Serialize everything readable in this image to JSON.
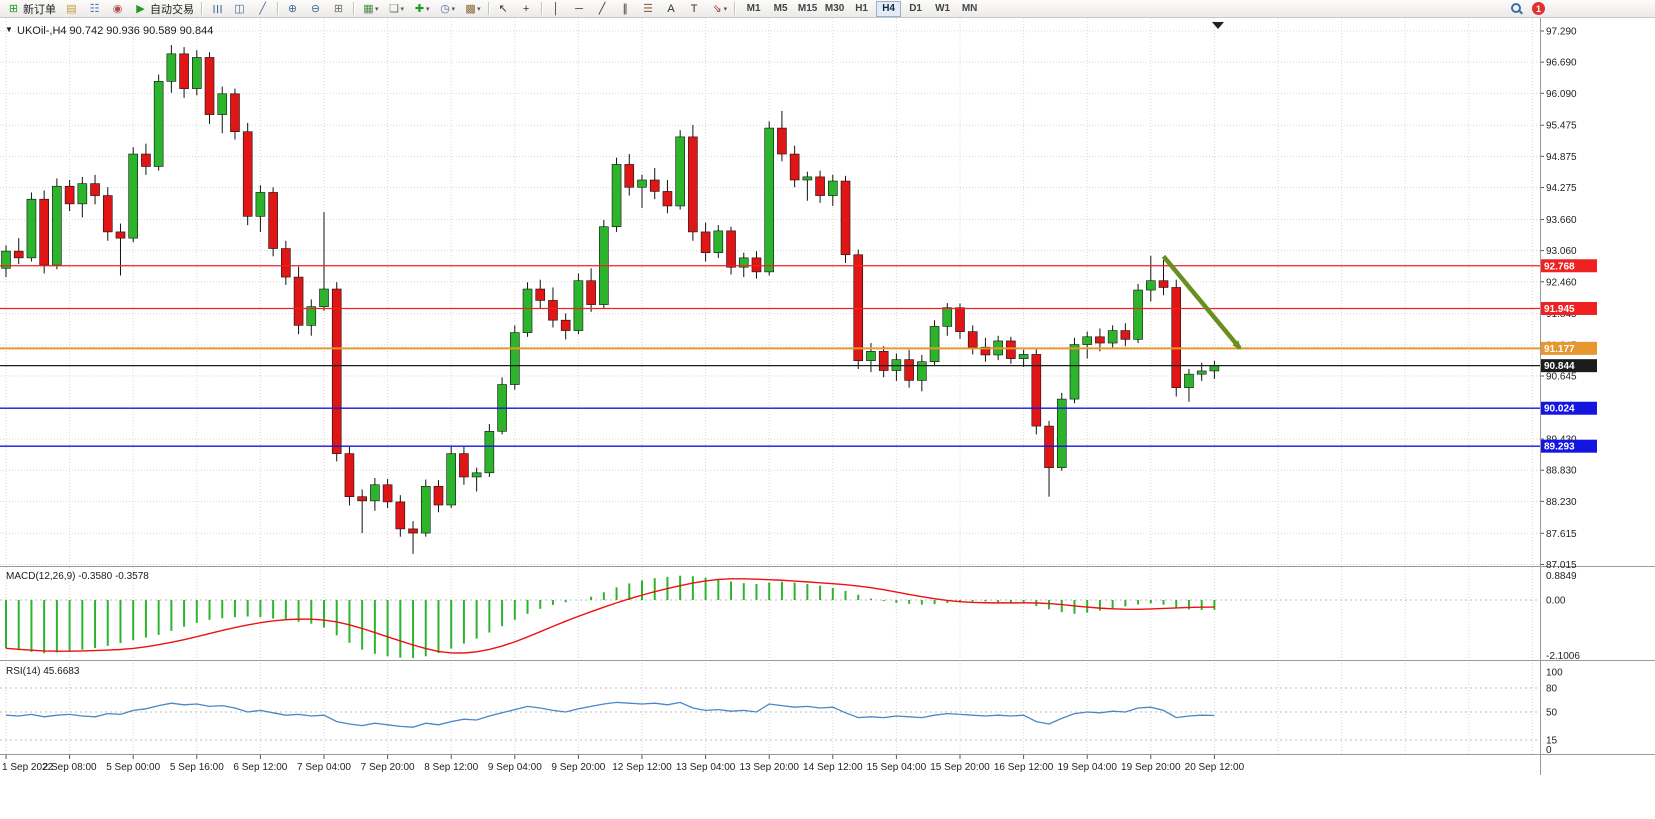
{
  "colors": {
    "bull": "#2db42d",
    "bear": "#e01515",
    "wick": "#111111",
    "grid": "#d7d7d7",
    "macd_hist": "#2db42d",
    "macd_signal": "#ee1111",
    "rsi_line": "#4a86c8",
    "arrow_green": "#698f1f",
    "axis_line": "#9a9a9a"
  },
  "toolbar": {
    "notification_count": "1",
    "timeframes": [
      "M1",
      "M5",
      "M15",
      "M30",
      "H1",
      "H4",
      "D1",
      "W1",
      "MN"
    ],
    "active_timeframe": "H4",
    "items": [
      {
        "t": "btn",
        "name": "new-order-button",
        "icon_name": "new-order-icon",
        "label": "新订单",
        "glyph": "⊞",
        "color": "#1f9d1f"
      },
      {
        "t": "icon",
        "name": "charts-toolbar-icon",
        "glyph": "▤",
        "color": "#c49a3c"
      },
      {
        "t": "icon",
        "name": "market-watch-icon",
        "glyph": "☷",
        "color": "#4a78b4"
      },
      {
        "t": "icon",
        "name": "navigator-icon",
        "glyph": "◉",
        "color": "#b05050"
      },
      {
        "t": "btn",
        "name": "autotrade-button",
        "icon_name": "autotrade-icon",
        "label": "自动交易",
        "glyph": "▶",
        "color": "#1f9d1f"
      },
      {
        "t": "sep"
      },
      {
        "t": "icon",
        "name": "bar-chart-icon",
        "glyph": "☰",
        "color": "#41699c",
        "cls": "rot90"
      },
      {
        "t": "icon",
        "name": "candlestick-chart-icon",
        "glyph": "◫",
        "color": "#41699c"
      },
      {
        "t": "icon",
        "name": "line-chart-icon",
        "glyph": "╱",
        "color": "#41699c"
      },
      {
        "t": "sep"
      },
      {
        "t": "icon",
        "name": "zoom-in-icon",
        "glyph": "⊕",
        "color": "#41699c"
      },
      {
        "t": "icon",
        "name": "zoom-out-icon",
        "glyph": "⊖",
        "color": "#41699c"
      },
      {
        "t": "icon",
        "name": "tile-windows-icon",
        "glyph": "⊞",
        "color": "#707070"
      },
      {
        "t": "sep"
      },
      {
        "t": "icon",
        "name": "new-chart-icon",
        "glyph": "▦",
        "color": "#4a8a4a",
        "caret": true
      },
      {
        "t": "icon",
        "name": "profiles-icon",
        "glyph": "❏",
        "color": "#707070",
        "caret": true
      },
      {
        "t": "icon",
        "name": "indicators-icon",
        "glyph": "✚",
        "color": "#1f9d1f",
        "caret": true
      },
      {
        "t": "icon",
        "name": "periods-icon",
        "glyph": "◷",
        "color": "#41699c",
        "caret": true
      },
      {
        "t": "icon",
        "name": "templates-icon",
        "glyph": "▩",
        "color": "#8a6a3a",
        "caret": true
      },
      {
        "t": "sep"
      },
      {
        "t": "icon",
        "name": "cursor-icon",
        "glyph": "↖",
        "color": "#333333"
      },
      {
        "t": "icon",
        "name": "crosshair-icon",
        "glyph": "+",
        "color": "#333333"
      },
      {
        "t": "sep"
      },
      {
        "t": "icon",
        "name": "vertical-line-icon",
        "glyph": "│",
        "color": "#333333"
      },
      {
        "t": "icon",
        "name": "horizontal-line-icon",
        "glyph": "─",
        "color": "#333333"
      },
      {
        "t": "icon",
        "name": "trendline-icon",
        "glyph": "╱",
        "color": "#333333"
      },
      {
        "t": "icon",
        "name": "channel-icon",
        "glyph": "∥",
        "color": "#333333"
      },
      {
        "t": "icon",
        "name": "fibonacci-icon",
        "glyph": "☰",
        "color": "#8a6a3a"
      },
      {
        "t": "icon",
        "name": "text-icon",
        "glyph": "A",
        "color": "#333333"
      },
      {
        "t": "icon",
        "name": "text-label-icon",
        "glyph": "T",
        "color": "#333333"
      },
      {
        "t": "icon",
        "name": "arrows-tool-icon",
        "glyph": "⇘",
        "color": "#a03030",
        "caret": true
      },
      {
        "t": "sep"
      }
    ]
  },
  "chart": {
    "symbol_label": "UKOil-,H4 90.742 90.936 90.589 90.844",
    "one_click_glyph": "▼",
    "price_axis_labels": [
      "97.290",
      "96.690",
      "96.090",
      "95.475",
      "94.875",
      "94.275",
      "93.660",
      "93.060",
      "92.460",
      "91.845",
      "91.245",
      "90.645",
      "89.430",
      "88.830",
      "88.230",
      "87.615",
      "87.015"
    ],
    "grid_prices": [
      97.29,
      96.69,
      96.09,
      95.475,
      94.875,
      94.275,
      93.66,
      93.06,
      92.46,
      91.845,
      91.245,
      90.645,
      90.03,
      89.43,
      88.83,
      88.23,
      87.615,
      87.015
    ],
    "time_axis_labels": [
      "1 Sep 2022",
      "2 Sep 08:00",
      "5 Sep 00:00",
      "5 Sep 16:00",
      "6 Sep 12:00",
      "7 Sep 04:00",
      "7 Sep 20:00",
      "8 Sep 12:00",
      "9 Sep 04:00",
      "9 Sep 20:00",
      "12 Sep 12:00",
      "13 Sep 04:00",
      "13 Sep 20:00",
      "14 Sep 12:00",
      "15 Sep 04:00",
      "15 Sep 20:00",
      "16 Sep 12:00",
      "19 Sep 04:00",
      "19 Sep 20:00",
      "20 Sep 12:00"
    ],
    "hlines": [
      {
        "price": 92.768,
        "label": "92.768",
        "color": "#ee2222",
        "width": 1.2
      },
      {
        "price": 91.945,
        "label": "91.945",
        "color": "#ee2222",
        "width": 1.2
      },
      {
        "price": 91.177,
        "label": "91.177",
        "color": "#e8962e",
        "width": 2
      },
      {
        "price": 90.844,
        "label": "90.844",
        "color": "#1c1c1c",
        "width": 1.2
      },
      {
        "price": 90.024,
        "label": "90.024",
        "color": "#1515e0",
        "width": 1.4
      },
      {
        "price": 89.293,
        "label": "89.293",
        "color": "#1515e0",
        "width": 1.4
      }
    ],
    "arrow": {
      "from_bar": 91,
      "from_price": 92.95,
      "to_bar": 97,
      "to_price": 91.18
    }
  },
  "macd": {
    "label": "MACD(12,26,9) -0.3580 -0.3578",
    "axis_labels": [
      "0.8849",
      "0.00",
      "-2.1006"
    ]
  },
  "rsi": {
    "label": "RSI(14) 45.6683",
    "axis_labels": [
      "100",
      "80",
      "50",
      "15",
      "0"
    ],
    "levels": [
      80,
      50,
      15
    ]
  },
  "chart_data": {
    "type": "candlestick",
    "symbol": "UKOil-",
    "timeframe": "H4",
    "current_ohlc": {
      "open": 90.742,
      "high": 90.936,
      "low": 90.589,
      "close": 90.844
    },
    "ohlc": [
      [
        92.72,
        93.16,
        92.55,
        93.05
      ],
      [
        93.05,
        93.3,
        92.8,
        92.92
      ],
      [
        92.92,
        94.18,
        92.85,
        94.05
      ],
      [
        94.05,
        94.22,
        92.62,
        92.78
      ],
      [
        92.78,
        94.45,
        92.7,
        94.3
      ],
      [
        94.3,
        94.42,
        93.82,
        93.96
      ],
      [
        93.96,
        94.48,
        93.7,
        94.35
      ],
      [
        94.35,
        94.52,
        93.95,
        94.12
      ],
      [
        94.12,
        94.28,
        93.25,
        93.42
      ],
      [
        93.42,
        93.58,
        92.58,
        93.3
      ],
      [
        93.3,
        95.05,
        93.22,
        94.92
      ],
      [
        94.92,
        95.12,
        94.52,
        94.68
      ],
      [
        94.68,
        96.45,
        94.6,
        96.32
      ],
      [
        96.32,
        97.02,
        96.1,
        96.85
      ],
      [
        96.85,
        96.98,
        96.0,
        96.18
      ],
      [
        96.18,
        96.92,
        96.05,
        96.78
      ],
      [
        96.78,
        96.88,
        95.5,
        95.68
      ],
      [
        95.68,
        96.22,
        95.32,
        96.08
      ],
      [
        96.08,
        96.18,
        95.2,
        95.35
      ],
      [
        95.35,
        95.52,
        93.55,
        93.72
      ],
      [
        93.72,
        94.32,
        93.42,
        94.18
      ],
      [
        94.18,
        94.28,
        92.95,
        93.1
      ],
      [
        93.1,
        93.25,
        92.4,
        92.55
      ],
      [
        92.55,
        92.75,
        91.45,
        91.62
      ],
      [
        91.62,
        92.12,
        91.42,
        91.98
      ],
      [
        91.98,
        93.8,
        91.9,
        92.32
      ],
      [
        92.32,
        92.45,
        89.0,
        89.15
      ],
      [
        89.15,
        89.28,
        88.15,
        88.32
      ],
      [
        88.32,
        88.46,
        87.62,
        88.24
      ],
      [
        88.24,
        88.68,
        88.05,
        88.55
      ],
      [
        88.55,
        88.66,
        88.1,
        88.22
      ],
      [
        88.22,
        88.35,
        87.55,
        87.7
      ],
      [
        87.7,
        87.85,
        87.22,
        87.62
      ],
      [
        87.62,
        88.65,
        87.55,
        88.52
      ],
      [
        88.52,
        88.64,
        88.02,
        88.16
      ],
      [
        88.16,
        89.3,
        88.1,
        89.15
      ],
      [
        89.15,
        89.28,
        88.55,
        88.7
      ],
      [
        88.7,
        88.88,
        88.42,
        88.78
      ],
      [
        88.78,
        89.72,
        88.7,
        89.58
      ],
      [
        89.58,
        90.62,
        89.52,
        90.48
      ],
      [
        90.48,
        91.62,
        90.38,
        91.48
      ],
      [
        91.48,
        92.45,
        91.4,
        92.32
      ],
      [
        92.32,
        92.5,
        91.95,
        92.1
      ],
      [
        92.1,
        92.35,
        91.58,
        91.72
      ],
      [
        91.72,
        91.85,
        91.35,
        91.52
      ],
      [
        91.52,
        92.62,
        91.45,
        92.48
      ],
      [
        92.48,
        92.72,
        91.88,
        92.02
      ],
      [
        92.02,
        93.65,
        91.95,
        93.52
      ],
      [
        93.52,
        94.85,
        93.42,
        94.72
      ],
      [
        94.72,
        94.92,
        94.12,
        94.28
      ],
      [
        94.28,
        94.52,
        93.88,
        94.42
      ],
      [
        94.42,
        94.65,
        94.05,
        94.2
      ],
      [
        94.2,
        94.42,
        93.78,
        93.92
      ],
      [
        93.92,
        95.38,
        93.85,
        95.25
      ],
      [
        95.25,
        95.48,
        93.25,
        93.42
      ],
      [
        93.42,
        93.6,
        92.85,
        93.02
      ],
      [
        93.02,
        93.55,
        92.92,
        93.44
      ],
      [
        93.44,
        93.52,
        92.6,
        92.74
      ],
      [
        92.74,
        93.02,
        92.55,
        92.92
      ],
      [
        92.92,
        93.05,
        92.52,
        92.65
      ],
      [
        92.65,
        95.55,
        92.58,
        95.42
      ],
      [
        95.42,
        95.75,
        94.78,
        94.92
      ],
      [
        94.92,
        95.08,
        94.28,
        94.42
      ],
      [
        94.42,
        94.58,
        94.02,
        94.48
      ],
      [
        94.48,
        94.6,
        93.98,
        94.12
      ],
      [
        94.12,
        94.52,
        93.92,
        94.4
      ],
      [
        94.4,
        94.5,
        92.82,
        92.98
      ],
      [
        92.98,
        93.08,
        90.78,
        90.94
      ],
      [
        90.94,
        91.28,
        90.72,
        91.12
      ],
      [
        91.12,
        91.22,
        90.62,
        90.75
      ],
      [
        90.75,
        91.08,
        90.55,
        90.96
      ],
      [
        90.96,
        91.15,
        90.42,
        90.56
      ],
      [
        90.56,
        91.05,
        90.35,
        90.92
      ],
      [
        90.92,
        91.72,
        90.85,
        91.6
      ],
      [
        91.6,
        92.05,
        91.42,
        91.96
      ],
      [
        91.96,
        92.04,
        91.36,
        91.5
      ],
      [
        91.5,
        91.62,
        91.06,
        91.2
      ],
      [
        91.2,
        91.38,
        90.92,
        91.05
      ],
      [
        91.05,
        91.42,
        90.95,
        91.32
      ],
      [
        91.32,
        91.4,
        90.88,
        90.98
      ],
      [
        90.98,
        91.15,
        90.82,
        91.06
      ],
      [
        91.06,
        91.16,
        89.52,
        89.68
      ],
      [
        89.68,
        89.78,
        88.32,
        88.88
      ],
      [
        88.88,
        90.32,
        88.82,
        90.2
      ],
      [
        90.2,
        91.38,
        90.12,
        91.25
      ],
      [
        91.25,
        91.5,
        90.98,
        91.4
      ],
      [
        91.4,
        91.56,
        91.12,
        91.28
      ],
      [
        91.28,
        91.62,
        91.18,
        91.52
      ],
      [
        91.52,
        91.66,
        91.22,
        91.35
      ],
      [
        91.35,
        92.42,
        91.28,
        92.3
      ],
      [
        92.3,
        92.96,
        92.08,
        92.48
      ],
      [
        92.48,
        92.88,
        92.2,
        92.35
      ],
      [
        92.35,
        92.5,
        90.25,
        90.42
      ],
      [
        90.42,
        90.78,
        90.15,
        90.68
      ],
      [
        90.68,
        90.9,
        90.55,
        90.742
      ],
      [
        90.742,
        90.936,
        90.589,
        90.844
      ]
    ],
    "macd_hist": [
      -1.75,
      -1.82,
      -1.88,
      -1.93,
      -1.9,
      -1.85,
      -1.8,
      -1.74,
      -1.66,
      -1.56,
      -1.46,
      -1.36,
      -1.26,
      -1.12,
      -0.97,
      -0.83,
      -0.72,
      -0.66,
      -0.62,
      -0.6,
      -0.62,
      -0.67,
      -0.73,
      -0.79,
      -0.86,
      -1.0,
      -1.28,
      -1.55,
      -1.8,
      -1.95,
      -2.04,
      -2.09,
      -2.1,
      -2.04,
      -1.92,
      -1.76,
      -1.58,
      -1.4,
      -1.18,
      -0.95,
      -0.72,
      -0.5,
      -0.32,
      -0.18,
      -0.08,
      0.0,
      0.12,
      0.28,
      0.46,
      0.6,
      0.71,
      0.79,
      0.84,
      0.88,
      0.86,
      0.81,
      0.74,
      0.67,
      0.61,
      0.58,
      0.63,
      0.66,
      0.63,
      0.58,
      0.52,
      0.44,
      0.33,
      0.19,
      0.05,
      -0.04,
      -0.1,
      -0.14,
      -0.17,
      -0.15,
      -0.11,
      -0.08,
      -0.06,
      -0.05,
      -0.08,
      -0.1,
      -0.13,
      -0.22,
      -0.34,
      -0.44,
      -0.5,
      -0.46,
      -0.38,
      -0.3,
      -0.23,
      -0.16,
      -0.12,
      -0.17,
      -0.28,
      -0.34,
      -0.36,
      -0.358
    ],
    "rsi": [
      46,
      45,
      47,
      44,
      46,
      47,
      45,
      44,
      48,
      47,
      52,
      54,
      58,
      61,
      59,
      60,
      57,
      58,
      55,
      50,
      52,
      49,
      46,
      47,
      45,
      46,
      38,
      35,
      33,
      36,
      34,
      32,
      31,
      36,
      34,
      38,
      41,
      40,
      45,
      49,
      53,
      57,
      55,
      52,
      50,
      54,
      57,
      60,
      62,
      61,
      60,
      61,
      59,
      62,
      55,
      52,
      53,
      51,
      52,
      50,
      60,
      58,
      56,
      57,
      55,
      56,
      49,
      43,
      44,
      43,
      45,
      44,
      43,
      46,
      48,
      47,
      46,
      45,
      46,
      45,
      46,
      38,
      35,
      42,
      48,
      50,
      49,
      51,
      50,
      55,
      56,
      52,
      43,
      45,
      46,
      45.67
    ]
  }
}
